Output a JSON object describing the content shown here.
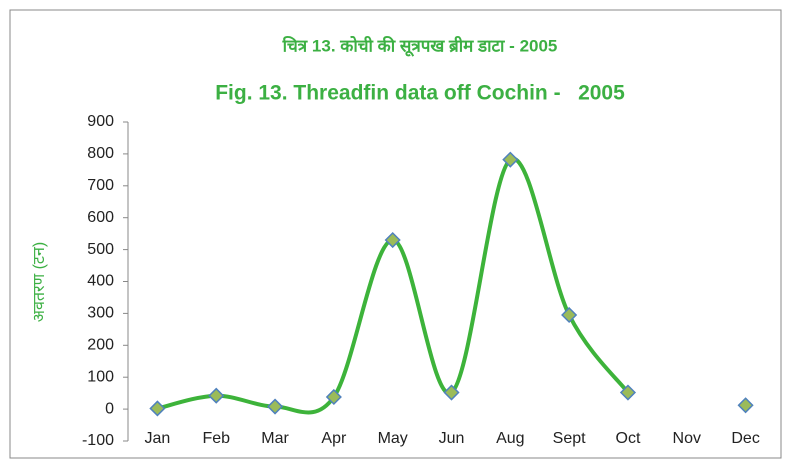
{
  "chart_data": {
    "type": "line",
    "title": "चित्र 13. कोची की सूत्रपख ब्रीम डाटा - 2005",
    "subtitle": "Fig. 13. Threadfin data off Cochin -   2005",
    "y_label": "अवतरण (टन)",
    "categories": [
      "Jan",
      "Feb",
      "Mar",
      "Apr",
      "May",
      "Jun",
      "Aug",
      "Sept",
      "Oct",
      "Nov",
      "Dec"
    ],
    "series": [
      {
        "name": "2005",
        "color": "#3db33a",
        "marker_color": "#9bbb59",
        "marker_edge": "#4f81bd",
        "values": [
          2,
          42,
          8,
          38,
          530,
          52,
          782,
          295,
          52,
          null,
          12
        ]
      }
    ],
    "ylim": [
      -100,
      900
    ],
    "yticks": [
      -100,
      0,
      100,
      200,
      300,
      400,
      500,
      600,
      700,
      800,
      900
    ],
    "smooth": true,
    "grid": false,
    "legend": false
  }
}
